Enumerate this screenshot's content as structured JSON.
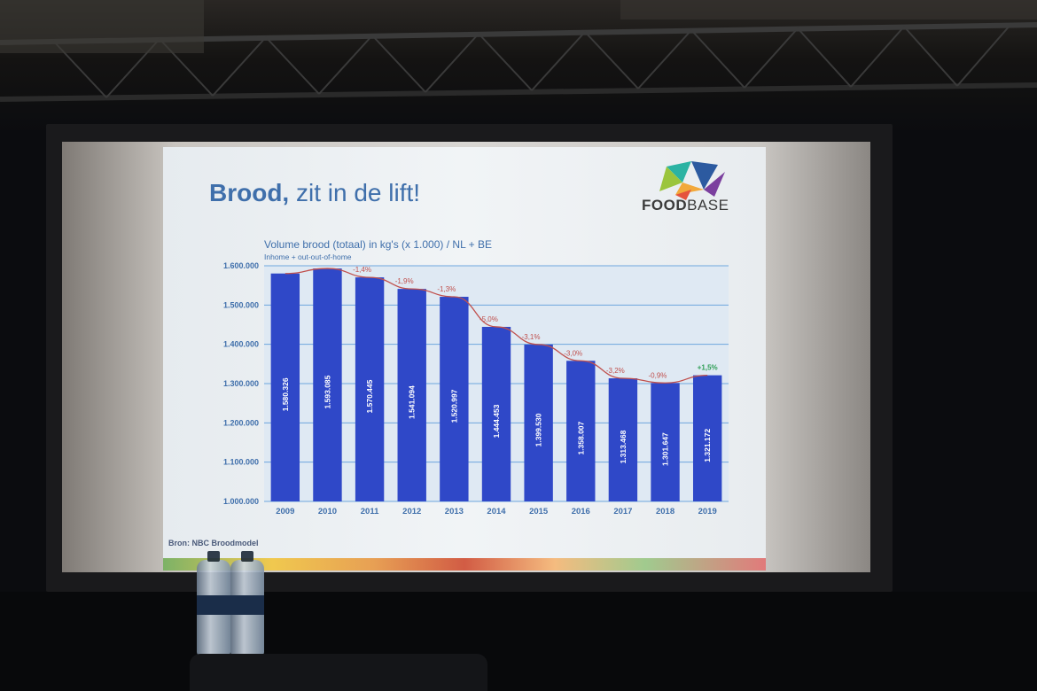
{
  "slide": {
    "title_bold": "Brood,",
    "title_rest": " zit in de lift!",
    "logo": {
      "bold": "FOOD",
      "thin": "BASE"
    },
    "source": "Bron: NBC Broodmodel"
  },
  "colors": {
    "bar": "#2f48c8",
    "trend_line": "#c0504d",
    "negative_label": "#c0504d",
    "positive_label": "#2e9e55",
    "plot_bg": "#dfe9f3",
    "gridline": "#6ea6de",
    "title": "#3f6fab"
  },
  "chart_data": {
    "type": "bar",
    "title": "Volume brood (totaal) in kg's (x 1.000) / NL + BE",
    "subtitle": "Inhome + out-out-of-home",
    "categories": [
      "2009",
      "2010",
      "2011",
      "2012",
      "2013",
      "2014",
      "2015",
      "2016",
      "2017",
      "2018",
      "2019"
    ],
    "values": [
      1580326,
      1593085,
      1570445,
      1541094,
      1520997,
      1444453,
      1399530,
      1358007,
      1313468,
      1301647,
      1321172
    ],
    "value_labels": [
      "1.580.326",
      "1.593.085",
      "1.570.445",
      "1.541.094",
      "1.520.997",
      "1.444.453",
      "1.399.530",
      "1.358.007",
      "1.313.468",
      "1.301.647",
      "1.321.172"
    ],
    "change_labels": [
      "",
      "",
      "-1,4%",
      "-1,9%",
      "-1,3%",
      "-5,0%",
      "-3,1%",
      "-3,0%",
      "-3,2%",
      "-0,9%",
      "+1,5%"
    ],
    "ylim": [
      1000000,
      1600000
    ],
    "yticks": [
      1000000,
      1100000,
      1200000,
      1300000,
      1400000,
      1500000,
      1600000
    ],
    "ytick_labels": [
      "1.000.000",
      "1.100.000",
      "1.200.000",
      "1.300.000",
      "1.400.000",
      "1.500.000",
      "1.600.000"
    ],
    "xlabel": "",
    "ylabel": "",
    "grid": true,
    "trend_line": true
  }
}
